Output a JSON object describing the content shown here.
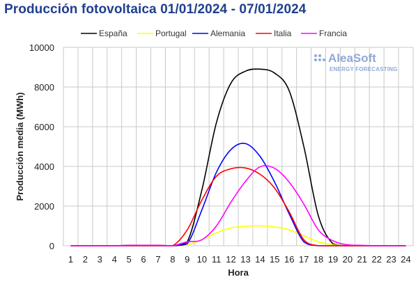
{
  "page_title": "Producción fotovoltaica 01/01/2024 - 07/01/2024",
  "logo": {
    "name": "AleaSoft",
    "tagline": "ENERGY FORECASTING",
    "color": "#8fa9d6"
  },
  "chart_data": {
    "type": "line",
    "title": "Producción fotovoltaica 01/01/2024 - 07/01/2024",
    "xlabel": "Hora",
    "ylabel": "Producción media (MWh)",
    "ylim": [
      0,
      10000
    ],
    "yticks": [
      0,
      2000,
      4000,
      6000,
      8000,
      10000
    ],
    "grid": true,
    "legend_position": "top",
    "x": [
      1,
      2,
      3,
      4,
      5,
      6,
      7,
      8,
      9,
      10,
      11,
      12,
      13,
      14,
      15,
      16,
      17,
      18,
      19,
      20,
      21,
      22,
      23,
      24
    ],
    "series": [
      {
        "name": "España",
        "color": "#000000",
        "values": [
          0,
          0,
          0,
          0,
          20,
          20,
          20,
          0,
          200,
          2800,
          6200,
          8200,
          8800,
          8900,
          8700,
          7800,
          5000,
          1500,
          100,
          0,
          0,
          0,
          0,
          0
        ]
      },
      {
        "name": "Portugal",
        "color": "#ffff00",
        "values": [
          0,
          0,
          0,
          0,
          0,
          0,
          0,
          0,
          50,
          300,
          650,
          900,
          980,
          1000,
          950,
          800,
          500,
          200,
          50,
          0,
          0,
          0,
          0,
          0
        ]
      },
      {
        "name": "Alemania",
        "color": "#0000ff",
        "values": [
          0,
          0,
          0,
          0,
          0,
          0,
          0,
          0,
          100,
          1800,
          3700,
          4850,
          5150,
          4500,
          3200,
          1600,
          200,
          0,
          0,
          0,
          0,
          0,
          0,
          0
        ]
      },
      {
        "name": "Italia",
        "color": "#ff0000",
        "values": [
          0,
          0,
          0,
          0,
          0,
          0,
          0,
          0,
          800,
          2300,
          3500,
          3880,
          3920,
          3600,
          2900,
          1700,
          300,
          0,
          0,
          0,
          0,
          0,
          0,
          0
        ]
      },
      {
        "name": "Francia",
        "color": "#ff00ff",
        "values": [
          0,
          0,
          0,
          0,
          20,
          20,
          20,
          0,
          200,
          300,
          1000,
          2200,
          3250,
          3980,
          3900,
          3200,
          2100,
          800,
          250,
          50,
          20,
          0,
          0,
          0
        ]
      }
    ]
  }
}
